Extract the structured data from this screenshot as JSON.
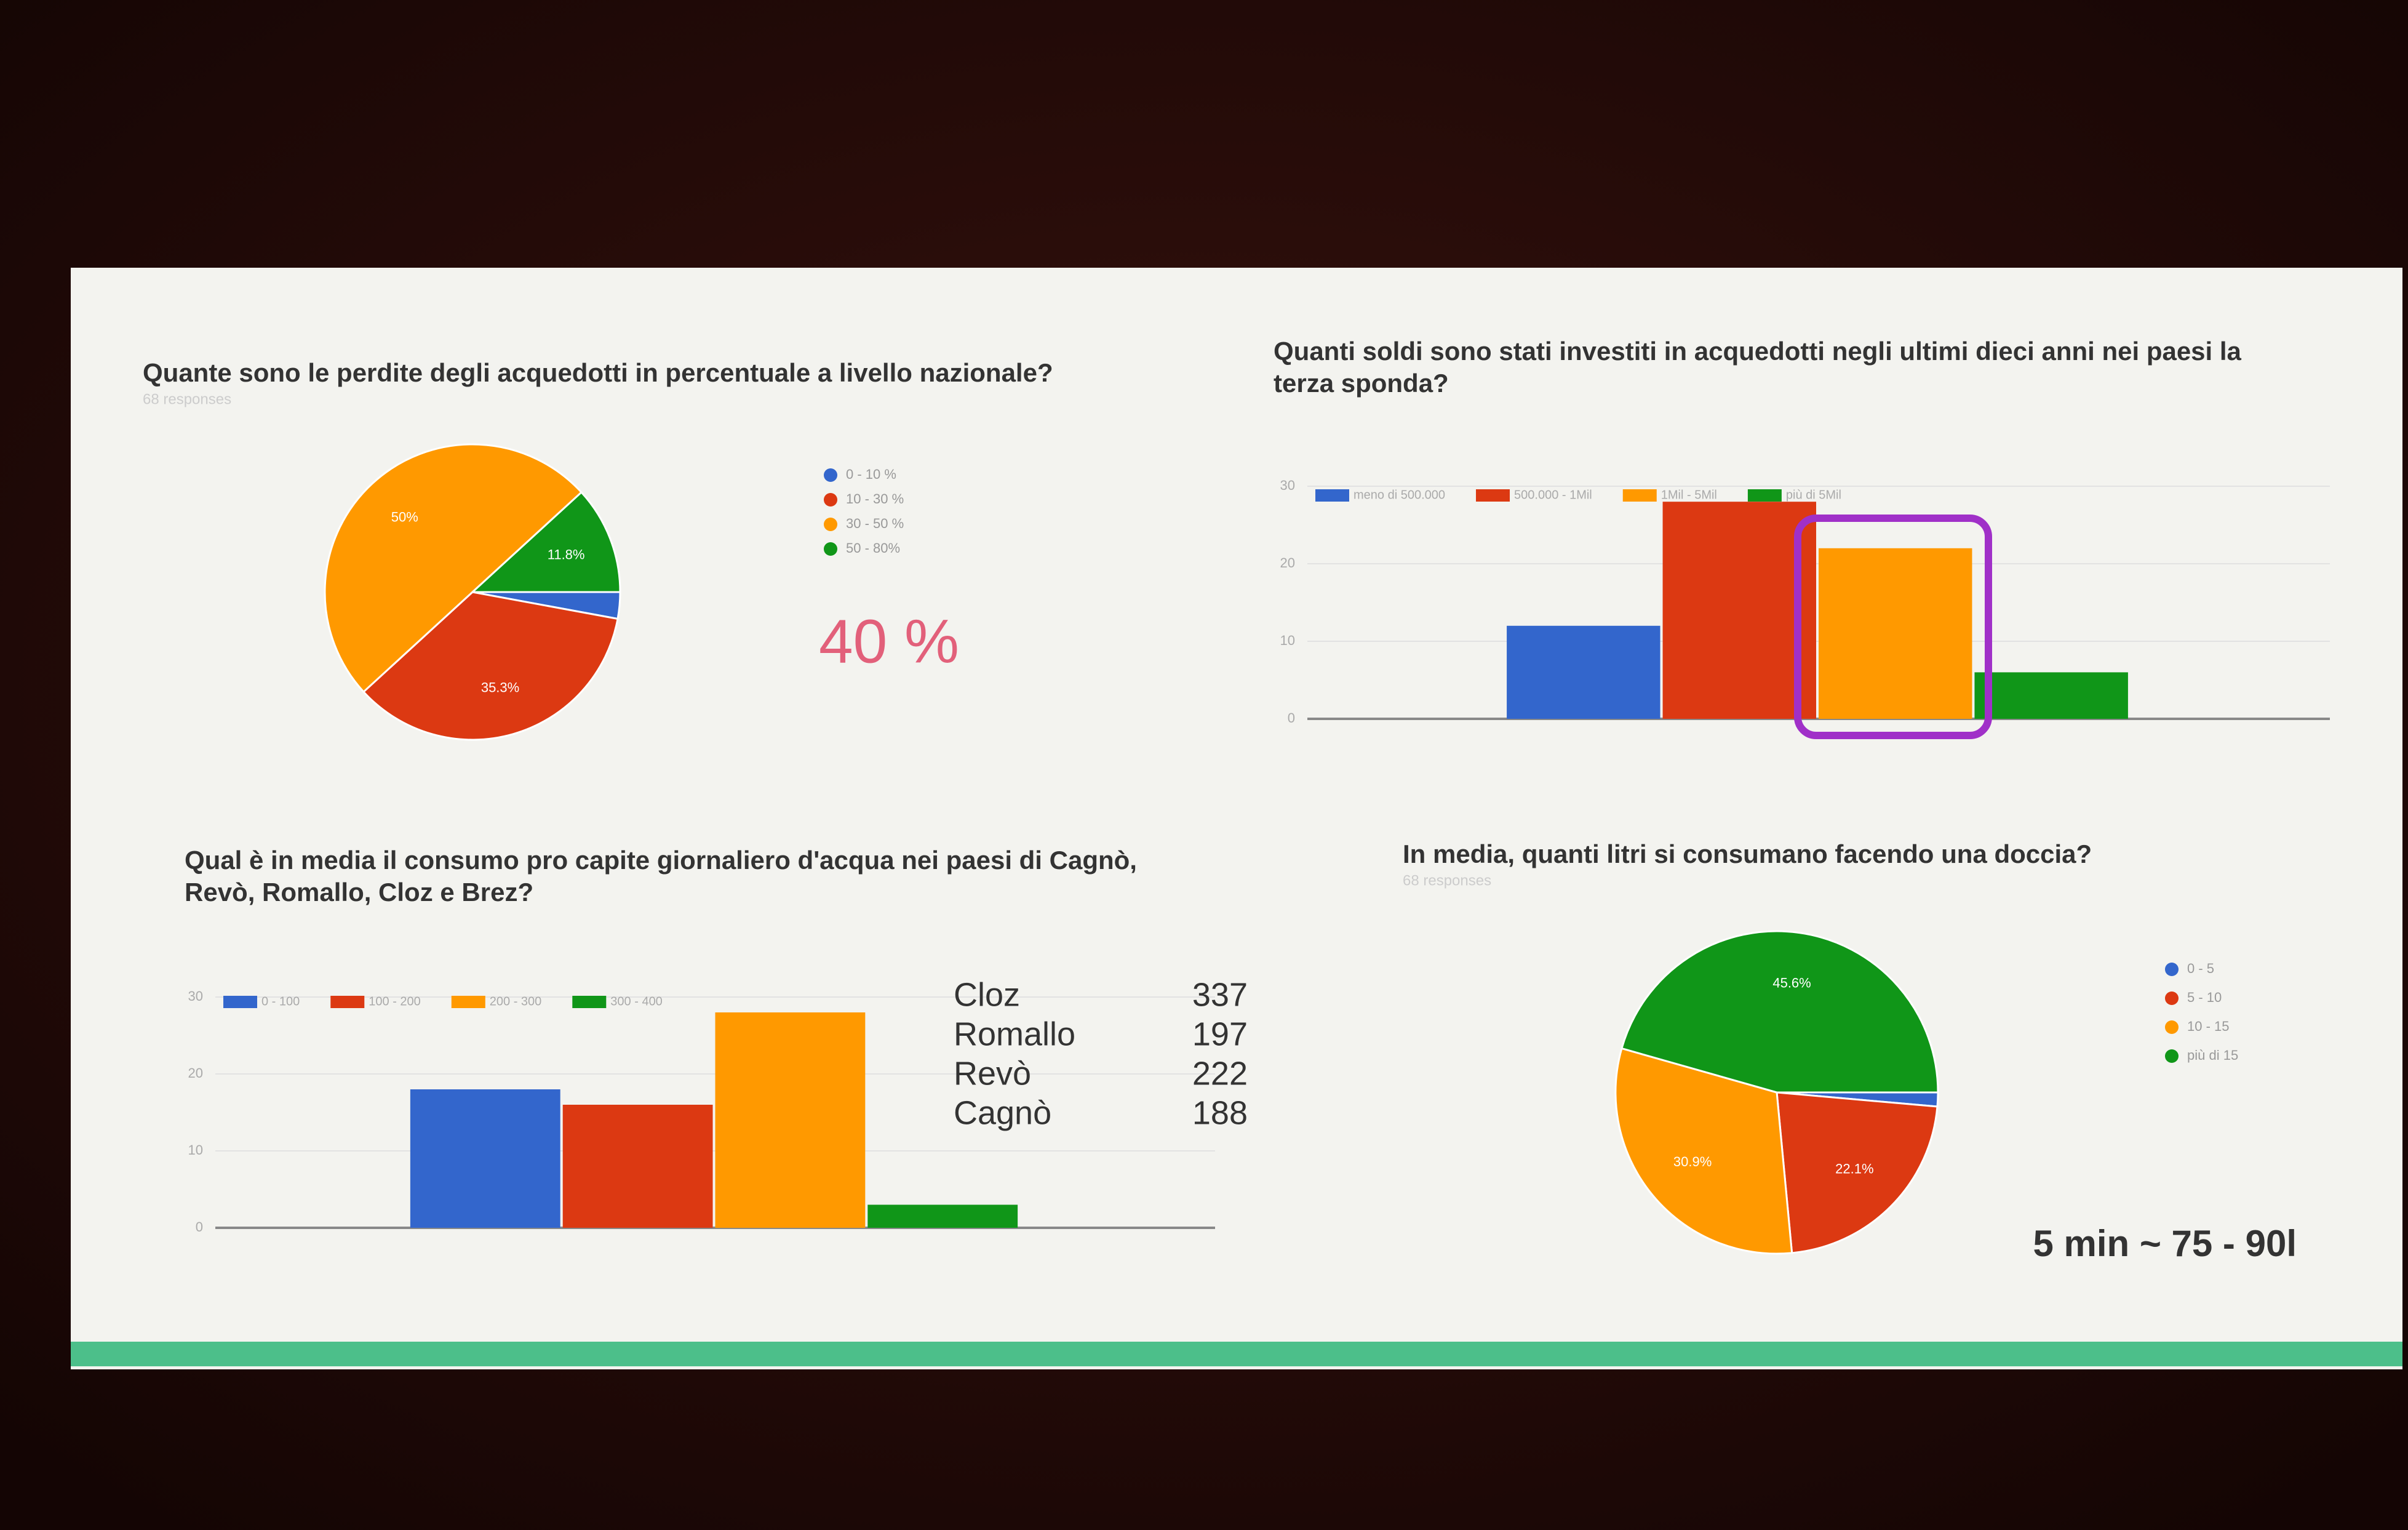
{
  "chart_data": [
    {
      "type": "pie",
      "title": "Quante sono le perdite degli acquedotti in percentuale a livello nazionale?",
      "subtitle": "68 responses",
      "categories": [
        "0 - 10 %",
        "10 - 30 %",
        "30 - 50 %",
        "50 - 80%"
      ],
      "values": [
        2.9,
        35.3,
        50,
        11.8
      ],
      "value_labels": [
        null,
        "35.3%",
        "50%",
        "11.8%"
      ],
      "colors": [
        "#3366cc",
        "#dc3912",
        "#ff9900",
        "#109618"
      ],
      "legend": "right",
      "annotation": "40 %"
    },
    {
      "type": "bar",
      "title": "Quanti soldi sono stati investiti in acquedotti negli ultimi dieci anni nei paesi la terza sponda?",
      "categories": [
        null
      ],
      "series": [
        {
          "name": "meno di 500.000",
          "color": "#3366cc",
          "values": [
            12
          ]
        },
        {
          "name": "500.000 - 1Mil",
          "color": "#dc3912",
          "values": [
            28
          ]
        },
        {
          "name": "1Mil - 5Mil",
          "color": "#ff9900",
          "values": [
            22
          ]
        },
        {
          "name": "più di 5Mil",
          "color": "#109618",
          "values": [
            6
          ]
        }
      ],
      "ylim": [
        0,
        30
      ],
      "yticks": [
        0,
        10,
        20,
        30
      ],
      "grid": true,
      "legend": "top"
    },
    {
      "type": "bar",
      "title": "Qual è in media il consumo pro capite giornaliero d'acqua nei paesi di Cagnò, Revò, Romallo, Cloz e Brez?",
      "categories": [
        null
      ],
      "series": [
        {
          "name": "0 - 100",
          "color": "#3366cc",
          "values": [
            18
          ]
        },
        {
          "name": "100 - 200",
          "color": "#dc3912",
          "values": [
            16
          ]
        },
        {
          "name": "200 - 300",
          "color": "#ff9900",
          "values": [
            28
          ]
        },
        {
          "name": "300 - 400",
          "color": "#109618",
          "values": [
            3
          ]
        }
      ],
      "ylim": [
        0,
        30
      ],
      "yticks": [
        0,
        10,
        20,
        30
      ],
      "grid": true,
      "legend": "top"
    },
    {
      "type": "pie",
      "title": "In media, quanti litri si consumano facendo una doccia?",
      "subtitle": "68 responses",
      "categories": [
        "0 - 5",
        "5 - 10",
        "10 - 15",
        "più di 15"
      ],
      "values": [
        1.4,
        22.1,
        30.9,
        45.6
      ],
      "value_labels": [
        null,
        "22.1%",
        "30.9%",
        "45.6%"
      ],
      "colors": [
        "#3366cc",
        "#dc3912",
        "#ff9900",
        "#109618"
      ],
      "legend": "right",
      "annotation": "5 min ~ 75 - 90l"
    }
  ],
  "towns_table": {
    "rows": [
      [
        "Cloz",
        337
      ],
      [
        "Romallo",
        197
      ],
      [
        "Revò",
        222
      ],
      [
        "Cagnò",
        188
      ]
    ]
  }
}
